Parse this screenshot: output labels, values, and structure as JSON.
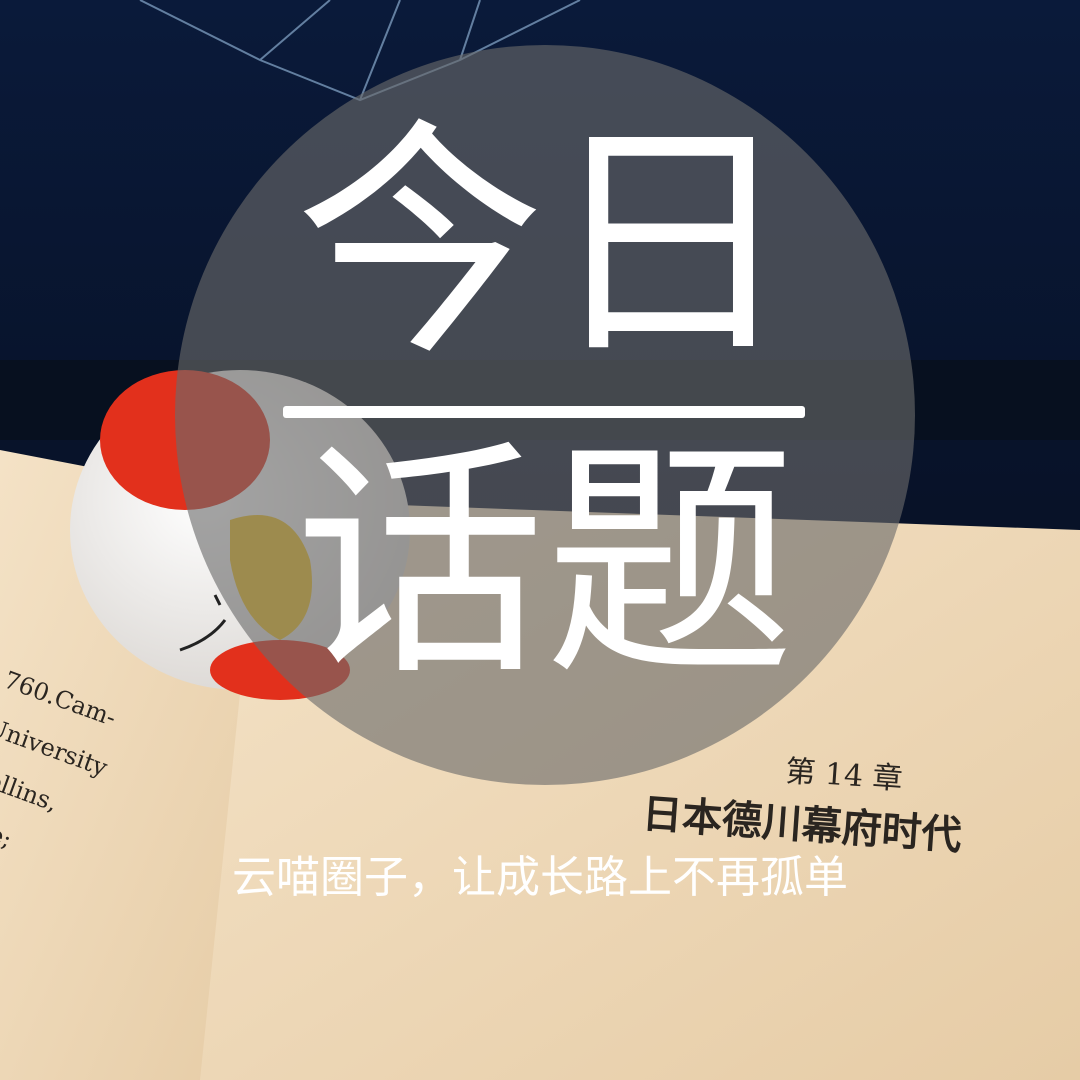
{
  "header": {
    "line1": "今日",
    "line2": "话题"
  },
  "subtitle": "云喵圈子，让成长路上不再孤单",
  "book": {
    "chapter": "第 14 章",
    "chapter_title": "日本德川幕府时代",
    "left_page": [
      "760.Cam-",
      "University",
      "Collins,",
      "idge;"
    ]
  }
}
